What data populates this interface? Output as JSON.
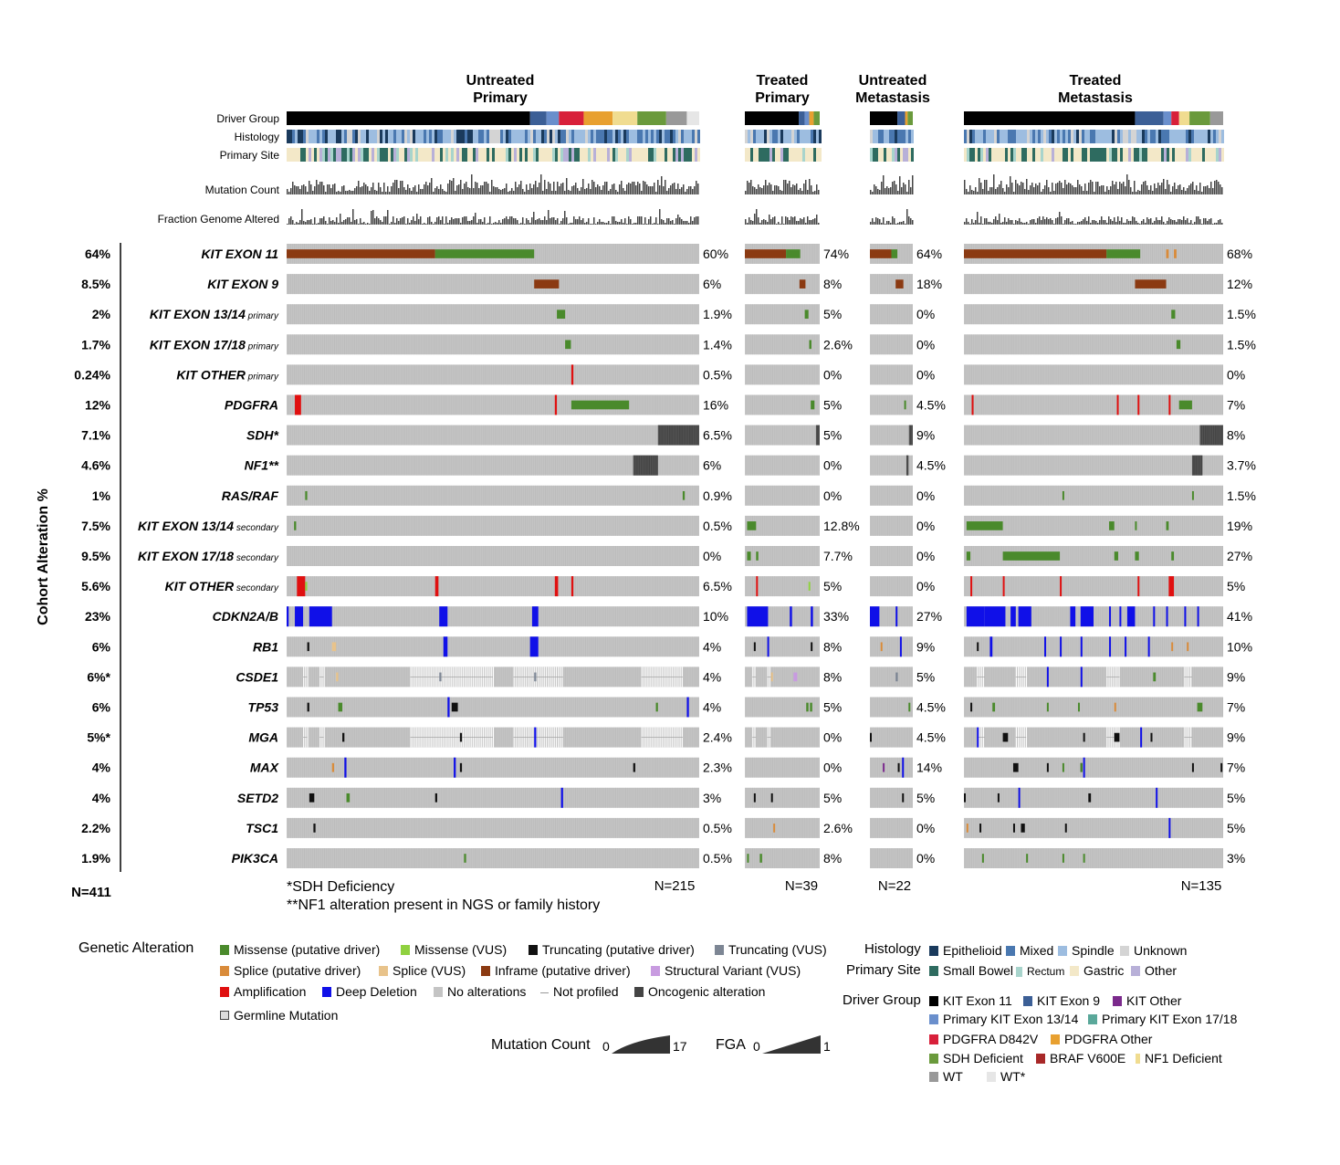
{
  "chart_data": {
    "type": "oncoprint",
    "groups": [
      {
        "name": "Untreated\nPrimary",
        "n_label": "N=215"
      },
      {
        "name": "Treated\nPrimary",
        "n_label": "N=39"
      },
      {
        "name": "Untreated\nMetastasis",
        "n_label": "N=22"
      },
      {
        "name": "Treated\nMetastasis",
        "n_label": "N=135"
      }
    ],
    "annotation_tracks": [
      "Driver Group",
      "Histology",
      "Primary Site"
    ],
    "bar_tracks": [
      "Mutation Count",
      "Fraction Genome Altered"
    ],
    "y_axis_label": "Cohort Alteration %",
    "total_n": "N=411",
    "genes": [
      {
        "name": "KIT EXON 11",
        "suffix": "",
        "cohort": "64%",
        "pct": [
          "60%",
          "74%",
          "64%",
          "68%"
        ]
      },
      {
        "name": "KIT EXON 9",
        "suffix": "",
        "cohort": "8.5%",
        "pct": [
          "6%",
          "8%",
          "18%",
          "12%"
        ]
      },
      {
        "name": "KIT EXON 13/14",
        "suffix": "primary",
        "cohort": "2%",
        "pct": [
          "1.9%",
          "5%",
          "0%",
          "1.5%"
        ]
      },
      {
        "name": "KIT EXON 17/18",
        "suffix": "primary",
        "cohort": "1.7%",
        "pct": [
          "1.4%",
          "2.6%",
          "0%",
          "1.5%"
        ]
      },
      {
        "name": "KIT OTHER",
        "suffix": "primary",
        "cohort": "0.24%",
        "pct": [
          "0.5%",
          "0%",
          "0%",
          "0%"
        ]
      },
      {
        "name": "PDGFRA",
        "suffix": "",
        "cohort": "12%",
        "pct": [
          "16%",
          "5%",
          "4.5%",
          "7%"
        ]
      },
      {
        "name": "SDH*",
        "suffix": "",
        "cohort": "7.1%",
        "pct": [
          "6.5%",
          "5%",
          "9%",
          "8%"
        ]
      },
      {
        "name": "NF1**",
        "suffix": "",
        "cohort": "4.6%",
        "pct": [
          "6%",
          "0%",
          "4.5%",
          "3.7%"
        ]
      },
      {
        "name": "RAS/RAF",
        "suffix": "",
        "cohort": "1%",
        "pct": [
          "0.9%",
          "0%",
          "0%",
          "1.5%"
        ]
      },
      {
        "name": "KIT EXON 13/14",
        "suffix": "secondary",
        "cohort": "7.5%",
        "pct": [
          "0.5%",
          "12.8%",
          "0%",
          "19%"
        ]
      },
      {
        "name": "KIT EXON 17/18",
        "suffix": "secondary",
        "cohort": "9.5%",
        "pct": [
          "0%",
          "7.7%",
          "0%",
          "27%"
        ]
      },
      {
        "name": "KIT OTHER",
        "suffix": "secondary",
        "cohort": "5.6%",
        "pct": [
          "6.5%",
          "5%",
          "0%",
          "5%"
        ]
      },
      {
        "name": "CDKN2A/B",
        "suffix": "",
        "cohort": "23%",
        "pct": [
          "10%",
          "33%",
          "27%",
          "41%"
        ]
      },
      {
        "name": "RB1",
        "suffix": "",
        "cohort": "6%",
        "pct": [
          "4%",
          "8%",
          "9%",
          "10%"
        ]
      },
      {
        "name": "CSDE1",
        "suffix": "",
        "cohort": "6%*",
        "pct": [
          "4%",
          "8%",
          "5%",
          "9%"
        ]
      },
      {
        "name": "TP53",
        "suffix": "",
        "cohort": "6%",
        "pct": [
          "4%",
          "5%",
          "4.5%",
          "7%"
        ]
      },
      {
        "name": "MGA",
        "suffix": "",
        "cohort": "5%*",
        "pct": [
          "2.4%",
          "0%",
          "4.5%",
          "9%"
        ]
      },
      {
        "name": "MAX",
        "suffix": "",
        "cohort": "4%",
        "pct": [
          "2.3%",
          "0%",
          "14%",
          "7%"
        ]
      },
      {
        "name": "SETD2",
        "suffix": "",
        "cohort": "4%",
        "pct": [
          "3%",
          "5%",
          "5%",
          "5%"
        ]
      },
      {
        "name": "TSC1",
        "suffix": "",
        "cohort": "2.2%",
        "pct": [
          "0.5%",
          "2.6%",
          "0%",
          "5%"
        ]
      },
      {
        "name": "PIK3CA",
        "suffix": "",
        "cohort": "1.9%",
        "pct": [
          "0.5%",
          "8%",
          "0%",
          "3%"
        ]
      }
    ],
    "footnotes": [
      "*SDH Deficiency",
      "**NF1 alteration present in NGS or family history"
    ],
    "colors": {
      "missense_driver": "#4a8a2c",
      "missense_vus": "#8fd13f",
      "truncating_driver": "#111111",
      "truncating_vus": "#7d8694",
      "splice_driver": "#d98b3a",
      "splice_vus": "#e8c38b",
      "inframe_driver": "#8b3a12",
      "structural_vus": "#c89be0",
      "amplification": "#e01010",
      "deep_deletion": "#1010e8",
      "no_alteration": "#c4c4c4",
      "oncogenic": "#444444",
      "epithelioid": "#1a3a5c",
      "mixed": "#4a78b0",
      "spindle": "#9dbde0",
      "unknown": "#d4d4d4",
      "small_bowel": "#2e6b60",
      "rectum": "#a8d4cc",
      "gastric": "#f3e8c8",
      "site_other": "#b8b0d8",
      "kit11": "#000000",
      "kit9": "#3c5f96",
      "kit_other": "#7b2a8c",
      "kit1314": "#6a8fcc",
      "kit1718": "#5aa89a",
      "pdgfra_d842v": "#d8203a",
      "pdgfra_other": "#e8a030",
      "sdh_def": "#6a9a3c",
      "braf": "#a82828",
      "nf1_def": "#f0dc90",
      "wt": "#999999",
      "wt_star": "#e6e6e6"
    }
  },
  "legend": {
    "genetic_title": "Genetic Alteration",
    "genetic_items": [
      {
        "label": "Missense (putative driver)",
        "color": "#4a8a2c"
      },
      {
        "label": "Missense (VUS)",
        "color": "#8fd13f"
      },
      {
        "label": "Truncating (putative driver)",
        "color": "#111111"
      },
      {
        "label": "Truncating (VUS)",
        "color": "#7d8694"
      },
      {
        "label": "Splice (putative driver)",
        "color": "#d98b3a"
      },
      {
        "label": "Splice (VUS)",
        "color": "#e8c38b"
      },
      {
        "label": "Inframe (putative driver)",
        "color": "#8b3a12"
      },
      {
        "label": "Structural Variant (VUS)",
        "color": "#c89be0"
      },
      {
        "label": "Amplification",
        "color": "#e01010"
      },
      {
        "label": "Deep Deletion",
        "color": "#1010e8"
      },
      {
        "label": "No alterations",
        "color": "#c4c4c4"
      },
      {
        "label": "Not profiled",
        "color": "#999999"
      },
      {
        "label": "Oncogenic alteration",
        "color": "#444444"
      },
      {
        "label": "Germline Mutation",
        "color": "#dddddd"
      }
    ],
    "histology_title": "Histology",
    "histology_items": [
      {
        "label": "Epithelioid",
        "color": "#1a3a5c"
      },
      {
        "label": "Mixed",
        "color": "#4a78b0"
      },
      {
        "label": "Spindle",
        "color": "#9dbde0"
      },
      {
        "label": "Unknown",
        "color": "#d4d4d4"
      }
    ],
    "site_title": "Primary Site",
    "site_items": [
      {
        "label": "Small Bowel",
        "color": "#2e6b60"
      },
      {
        "label": "Rectum",
        "color": "#a8d4cc"
      },
      {
        "label": "Gastric",
        "color": "#f3e8c8"
      },
      {
        "label": "Other",
        "color": "#b8b0d8"
      }
    ],
    "driver_title": "Driver Group",
    "driver_items": [
      {
        "label": "KIT Exon 11",
        "color": "#000000"
      },
      {
        "label": "KIT Exon 9",
        "color": "#3c5f96"
      },
      {
        "label": "KIT Other",
        "color": "#7b2a8c"
      },
      {
        "label": "Primary KIT Exon 13/14",
        "color": "#6a8fcc"
      },
      {
        "label": "Primary KIT Exon 17/18",
        "color": "#5aa89a"
      },
      {
        "label": "PDGFRA D842V",
        "color": "#d8203a"
      },
      {
        "label": "PDGFRA Other",
        "color": "#e8a030"
      },
      {
        "label": "SDH Deficient",
        "color": "#6a9a3c"
      },
      {
        "label": "BRAF V600E",
        "color": "#a82828"
      },
      {
        "label": "NF1 Deficient",
        "color": "#f0dc90"
      },
      {
        "label": "WT",
        "color": "#999999"
      },
      {
        "label": "WT*",
        "color": "#e6e6e6"
      }
    ],
    "mutation_scale": {
      "label": "Mutation Count",
      "min": "0",
      "max": "17"
    },
    "fga_scale": {
      "label": "FGA",
      "min": "0",
      "max": "1"
    }
  }
}
